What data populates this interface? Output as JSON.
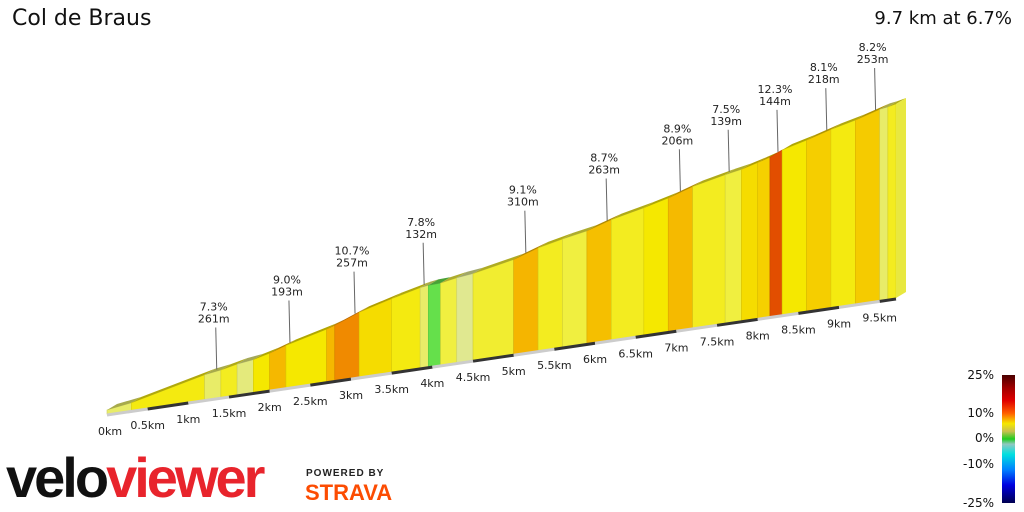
{
  "header": {
    "title": "Col de Braus",
    "summary": "9.7 km at 6.7%"
  },
  "chart_data": {
    "type": "area",
    "title": "Col de Braus",
    "total_distance_km": 9.7,
    "avg_gradient_pct": 6.7,
    "x_ticks": [
      "0km",
      "0.5km",
      "1km",
      "1.5km",
      "2km",
      "2.5km",
      "3km",
      "3.5km",
      "4km",
      "4.5km",
      "5km",
      "5.5km",
      "6km",
      "6.5km",
      "7km",
      "7.5km",
      "8km",
      "8.5km",
      "9km",
      "9.5km"
    ],
    "segments": [
      {
        "start": 0,
        "end": 0.3,
        "grad": 4
      },
      {
        "start": 0.3,
        "end": 1.2,
        "grad": 6.5
      },
      {
        "start": 1.2,
        "end": 1.4,
        "grad": 4
      },
      {
        "start": 1.4,
        "end": 1.6,
        "grad": 6
      },
      {
        "start": 1.6,
        "end": 1.8,
        "grad": 3.5
      },
      {
        "start": 1.8,
        "end": 2.0,
        "grad": 7
      },
      {
        "start": 2.0,
        "end": 2.2,
        "grad": 9.0
      },
      {
        "start": 2.2,
        "end": 2.7,
        "grad": 7
      },
      {
        "start": 2.7,
        "end": 2.8,
        "grad": 9
      },
      {
        "start": 2.8,
        "end": 3.1,
        "grad": 10.7
      },
      {
        "start": 3.1,
        "end": 3.5,
        "grad": 7.5
      },
      {
        "start": 3.5,
        "end": 3.85,
        "grad": 6.5
      },
      {
        "start": 3.85,
        "end": 3.95,
        "grad": 4
      },
      {
        "start": 3.95,
        "end": 4.1,
        "grad": 1
      },
      {
        "start": 4.1,
        "end": 4.3,
        "grad": 5
      },
      {
        "start": 4.3,
        "end": 4.5,
        "grad": 3
      },
      {
        "start": 4.5,
        "end": 5.0,
        "grad": 5.5
      },
      {
        "start": 5.0,
        "end": 5.3,
        "grad": 9.1
      },
      {
        "start": 5.3,
        "end": 5.6,
        "grad": 6
      },
      {
        "start": 5.6,
        "end": 5.9,
        "grad": 5
      },
      {
        "start": 5.9,
        "end": 6.2,
        "grad": 8.7
      },
      {
        "start": 6.2,
        "end": 6.6,
        "grad": 6
      },
      {
        "start": 6.6,
        "end": 6.9,
        "grad": 7
      },
      {
        "start": 6.9,
        "end": 7.2,
        "grad": 8.9
      },
      {
        "start": 7.2,
        "end": 7.6,
        "grad": 6
      },
      {
        "start": 7.6,
        "end": 7.8,
        "grad": 5
      },
      {
        "start": 7.8,
        "end": 8.0,
        "grad": 7.5
      },
      {
        "start": 8.0,
        "end": 8.15,
        "grad": 8
      },
      {
        "start": 8.15,
        "end": 8.3,
        "grad": 12.3
      },
      {
        "start": 8.3,
        "end": 8.6,
        "grad": 7
      },
      {
        "start": 8.6,
        "end": 8.9,
        "grad": 8.1
      },
      {
        "start": 8.9,
        "end": 9.2,
        "grad": 6.5
      },
      {
        "start": 9.2,
        "end": 9.5,
        "grad": 8.2
      },
      {
        "start": 9.5,
        "end": 9.6,
        "grad": 4
      },
      {
        "start": 9.6,
        "end": 9.7,
        "grad": 6
      }
    ],
    "annotations": [
      {
        "km": 1.3,
        "grad": "7.3%",
        "len": "261m"
      },
      {
        "km": 2.2,
        "grad": "9.0%",
        "len": "193m"
      },
      {
        "km": 3.0,
        "grad": "10.7%",
        "len": "257m"
      },
      {
        "km": 3.85,
        "grad": "7.8%",
        "len": "132m"
      },
      {
        "km": 5.1,
        "grad": "9.1%",
        "len": "310m"
      },
      {
        "km": 6.1,
        "grad": "8.7%",
        "len": "263m"
      },
      {
        "km": 7.0,
        "grad": "8.9%",
        "len": "206m"
      },
      {
        "km": 7.6,
        "grad": "7.5%",
        "len": "139m"
      },
      {
        "km": 8.2,
        "grad": "12.3%",
        "len": "144m"
      },
      {
        "km": 8.8,
        "grad": "8.1%",
        "len": "218m"
      },
      {
        "km": 9.4,
        "grad": "8.2%",
        "len": "253m"
      }
    ],
    "legend": {
      "labels": [
        "25%",
        "10%",
        "0%",
        "-10%",
        "-25%"
      ]
    }
  },
  "branding": {
    "logo_a": "velo",
    "logo_b": "viewer",
    "powered": "POWERED BY",
    "strava": "STRAVA"
  }
}
